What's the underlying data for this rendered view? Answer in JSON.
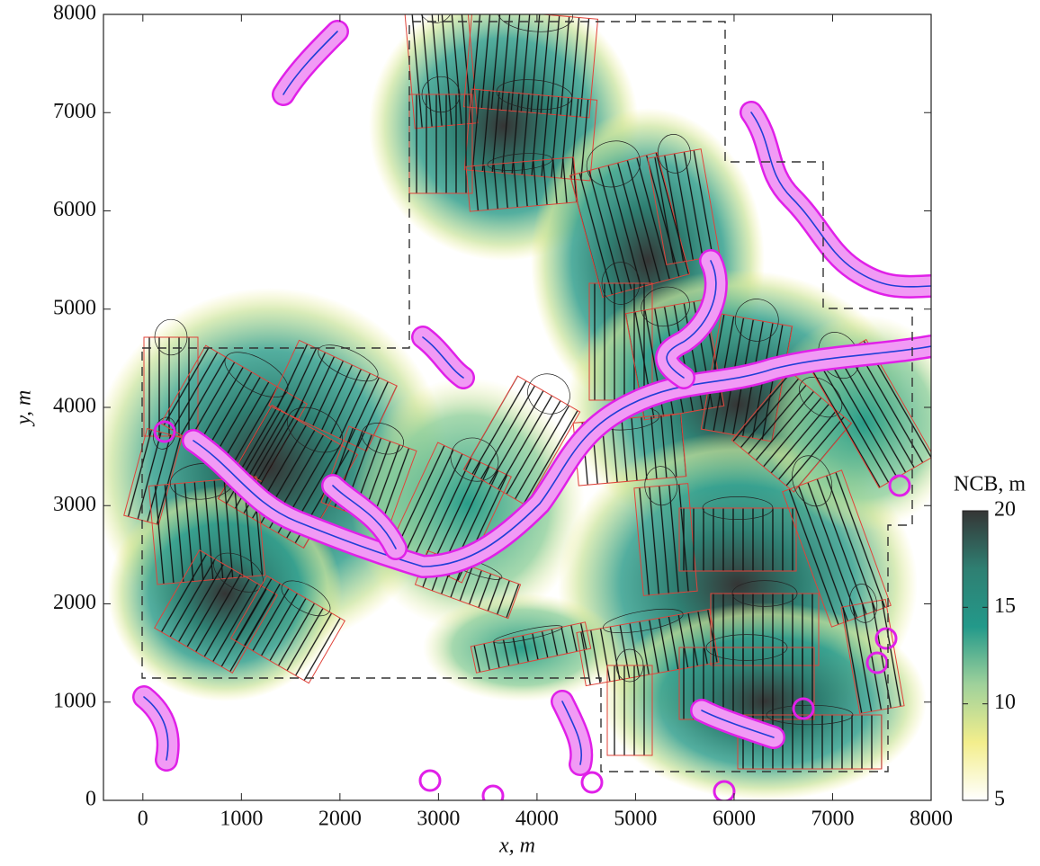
{
  "chart_data": {
    "type": "contour",
    "xlabel": "x, m",
    "ylabel": "y, m",
    "xlim": [
      -400,
      8000
    ],
    "xticks": [
      0,
      1000,
      2000,
      3000,
      4000,
      5000,
      6000,
      7000,
      8000
    ],
    "ylim": [
      0,
      8000
    ],
    "yticks": [
      0,
      1000,
      2000,
      3000,
      4000,
      5000,
      6000,
      7000,
      8000
    ],
    "colorbar": {
      "label": "NCB, m",
      "lim": [
        5,
        20
      ],
      "ticks": [
        5,
        10,
        15,
        20
      ],
      "colors": [
        "#ffffff",
        "#f3ee8c",
        "#9fd19b",
        "#23998a",
        "#2f7f72",
        "#353535"
      ]
    }
  }
}
